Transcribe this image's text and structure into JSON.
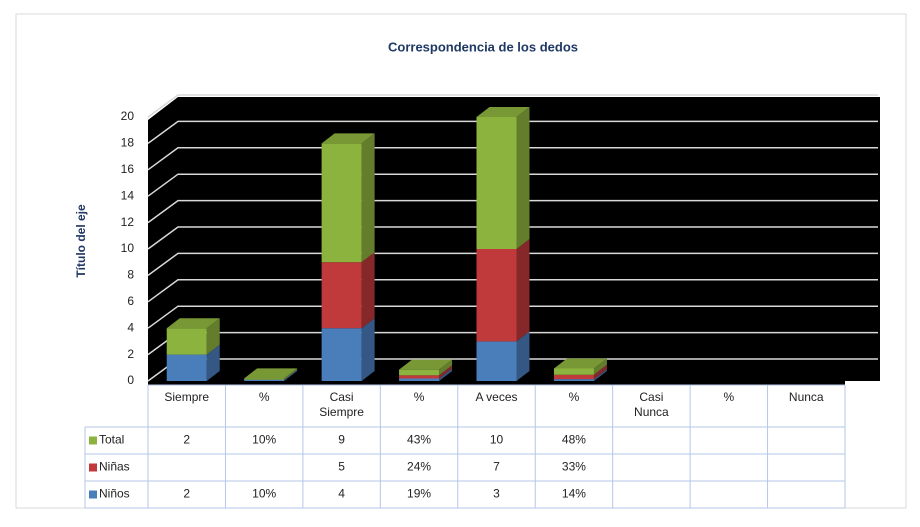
{
  "chart_data": {
    "type": "bar3d_stacked",
    "title": "Correspondencia de los dedos",
    "y_label": "Título del eje",
    "categories": [
      "Siempre",
      "%",
      "Casi Siempre",
      "%",
      "A veces",
      "%",
      "Casi Nunca",
      "%",
      "Nunca"
    ],
    "series": [
      {
        "name": "Niños",
        "color": "#4a7ebb",
        "values": [
          2,
          0.1,
          4,
          0.19,
          3,
          0.14,
          null,
          null,
          null
        ],
        "value_labels": [
          null,
          "10%",
          null,
          "19%",
          null,
          "14%",
          null,
          null,
          null
        ]
      },
      {
        "name": "Niñas",
        "color": "#c0393b",
        "values": [
          null,
          null,
          5,
          0.24,
          7,
          0.33,
          null,
          null,
          null
        ],
        "value_labels": [
          null,
          null,
          null,
          "24%",
          null,
          "33%",
          null,
          null,
          null
        ]
      },
      {
        "name": "Total",
        "color": "#8db33f",
        "values": [
          2,
          0.1,
          9,
          0.43,
          10,
          0.48,
          null,
          null,
          null
        ],
        "value_labels": [
          null,
          "10%",
          null,
          "43%",
          null,
          "48%",
          null,
          null,
          null
        ]
      }
    ],
    "ylim": [
      0,
      20
    ],
    "yticks": [
      0,
      2,
      4,
      6,
      8,
      10,
      12,
      14,
      16,
      18,
      20
    ],
    "grid": true
  }
}
